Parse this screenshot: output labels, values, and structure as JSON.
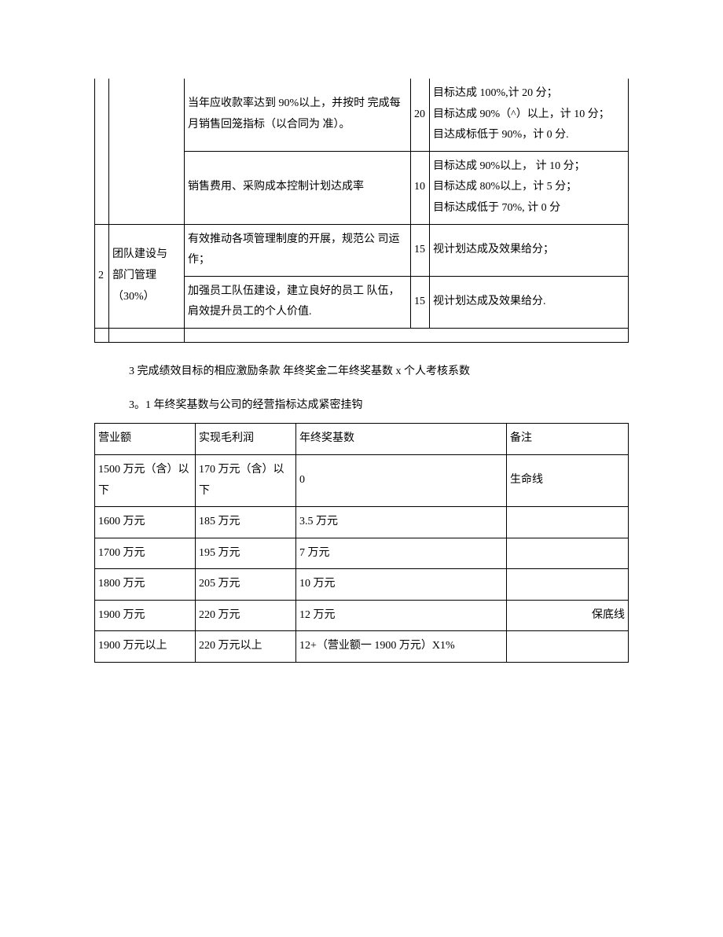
{
  "table1": {
    "border_color": "#000000",
    "font_size": 14,
    "rows": [
      {
        "desc": "当年应收款率达到 90%以上，并按时 完成每月销售回笼指标（以合同为 准）。",
        "score": "20",
        "criteria": "目标达成 100%,计 20 分；\n目标达成 90%（^）以上，计 10 分；\n目达成标低于 90%，计 0 分."
      },
      {
        "desc": "销售费用、采购成本控制计划达成率",
        "score": "10",
        "criteria": "目标达成 90%以上， 计 10 分；\n目标达成 80%以上，计 5 分；\n目标达成低于 70%, 计 0 分"
      },
      {
        "num": "2",
        "category": "团队建设与 部门管理（30%）",
        "sub": [
          {
            "desc": "有效推动各项管理制度的开展，规范公 司运作；",
            "score": "15",
            "criteria": "视计划达成及效果给分；"
          },
          {
            "desc": "加强员工队伍建设，建立良好的员工 队伍，肩效提升员工的个人价值.",
            "score": "15",
            "criteria": "视计划达成及效果给分."
          }
        ]
      }
    ]
  },
  "section3": "3 完成绩效目标的相应激励条款  年终奖金二年终奖基数 x 个人考核系数",
  "section3_1": "3。1 年终奖基数与公司的经营指标达成紧密挂钩",
  "table2": {
    "border_color": "#000000",
    "font_size": 14,
    "headers": [
      "营业额",
      "实现毛利润",
      "年终奖基数",
      "备注"
    ],
    "rows": [
      [
        "1500 万元（含）以下",
        "170 万元（含）以下",
        "0",
        "生命线"
      ],
      [
        "1600 万元",
        "185 万元",
        "3.5 万元",
        ""
      ],
      [
        "1700 万元",
        "195 万元",
        "7 万元",
        ""
      ],
      [
        "1800 万元",
        "205 万元",
        "10 万元",
        ""
      ],
      [
        "1900 万元",
        "220 万元",
        "12 万元",
        "保底线"
      ],
      [
        "1900 万元以上",
        "220 万元以上",
        "12+（营业额一 1900 万元）X1%",
        ""
      ]
    ]
  }
}
